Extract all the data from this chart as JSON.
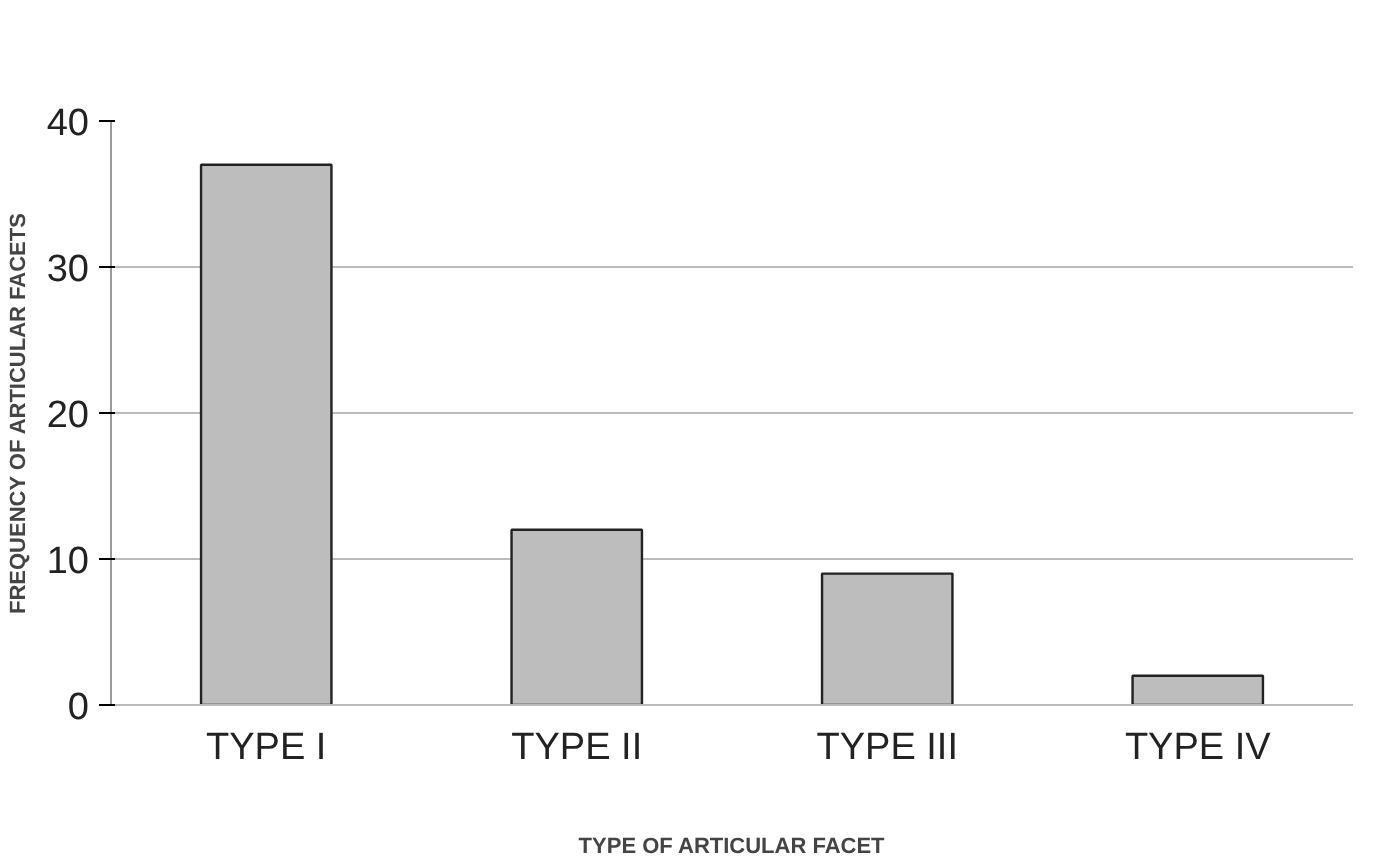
{
  "chart_data": {
    "type": "bar",
    "xlabel": "TYPE OF ARTICULAR FACET",
    "ylabel": "FREQUENCY OF ARTICULAR FACETS",
    "categories": [
      "TYPE I",
      "TYPE II",
      "TYPE III",
      "TYPE IV"
    ],
    "values": [
      37,
      12,
      9,
      2
    ],
    "color": "#bdbdbd",
    "ylim": [
      0,
      40
    ],
    "yticks": [
      0,
      10,
      20,
      30,
      40
    ],
    "grid": "y"
  }
}
